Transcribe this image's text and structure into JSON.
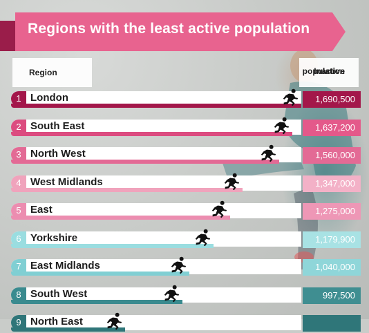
{
  "title": "Regions with the least active population",
  "headers": {
    "region": "Region",
    "inactive_line1": "Inactive",
    "inactive_line2": "population"
  },
  "chart_data": {
    "type": "bar",
    "title": "Regions with the least active population",
    "categories": [
      "London",
      "South East",
      "North West",
      "West Midlands",
      "East",
      "Yorkshire",
      "East Midlands",
      "South West",
      "North East"
    ],
    "series": [
      {
        "name": "Inactive population",
        "values": [
          1690500,
          1637200,
          1560000,
          1347000,
          1275000,
          1179900,
          1040000,
          997500,
          null
        ]
      }
    ],
    "value_labels": [
      "1,690,500",
      "1,637,200",
      "1,560,000",
      "1,347,000",
      "1,275,000",
      "1,179,900",
      "1,040,000",
      "997,500",
      ""
    ],
    "ranks": [
      "1",
      "2",
      "3",
      "4",
      "5",
      "6",
      "7",
      "8",
      "9"
    ],
    "bar_colors": [
      "#a3174a",
      "#dc4c80",
      "#e36a95",
      "#f0a3bc",
      "#ec8db0",
      "#9adde0",
      "#80cfd3",
      "#3a8b8f",
      "#2f7679"
    ],
    "label_colors": [
      "#a3174a",
      "#e4598a",
      "#e36a95",
      "#f3b1c7",
      "#ee97b6",
      "#a8e2e4",
      "#8fd6d9",
      "#3f8e91",
      "#2f7679"
    ],
    "icon": "runner-icon"
  }
}
